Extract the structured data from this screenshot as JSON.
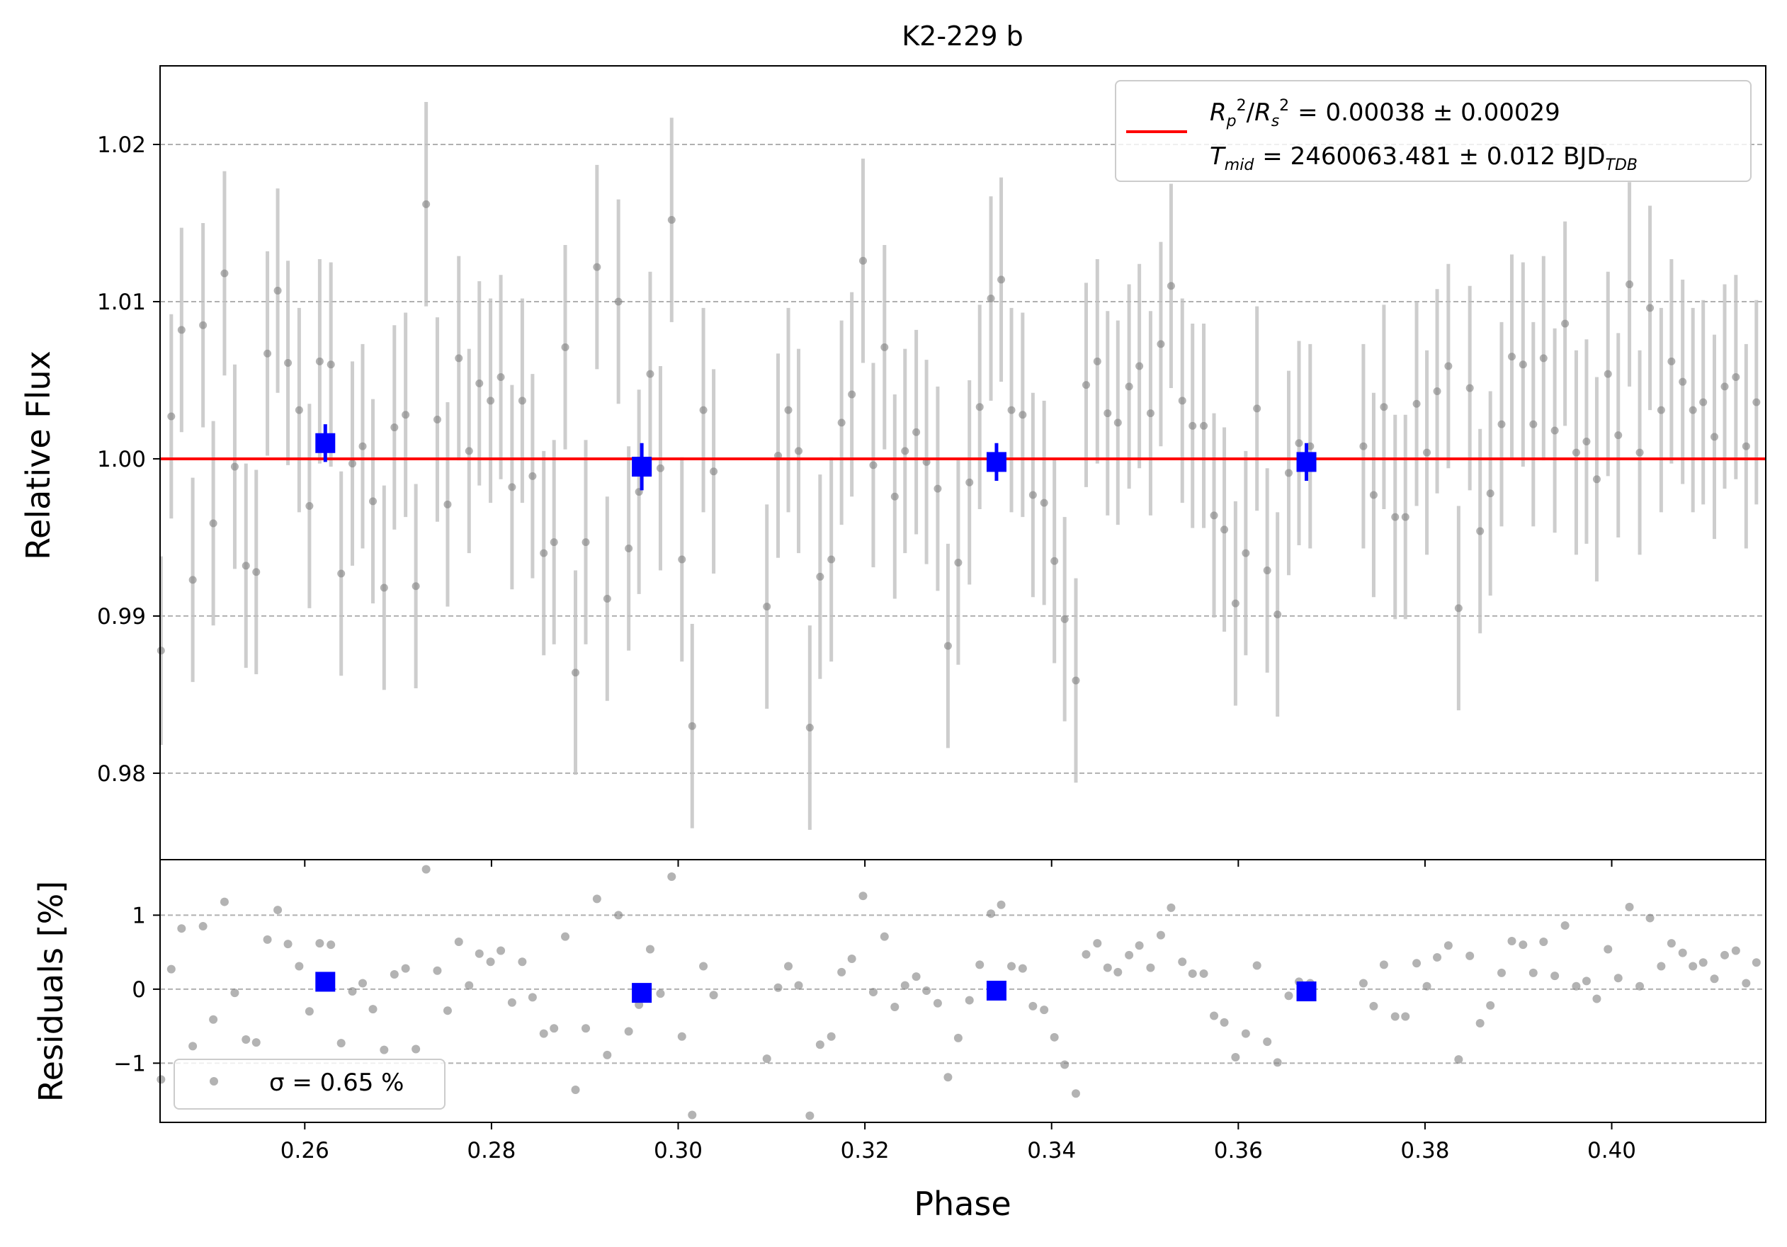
{
  "chart_data": [
    {
      "type": "scatter",
      "title": "K2-229 b",
      "xlabel": "",
      "ylabel": "Relative Flux",
      "xlim": [
        0.2445,
        0.4165
      ],
      "ylim": [
        0.9745,
        1.025
      ],
      "grid": "horizontal dashed",
      "yticks": [
        0.98,
        0.99,
        1.0,
        1.01,
        1.02
      ],
      "ytick_labels": [
        "0.98",
        "0.99",
        "1.00",
        "1.01",
        "1.02"
      ],
      "legend": {
        "placement": "top-right",
        "line1": {
          "lhs": "R_p^2/R_s^2",
          "value": "= 0.00038 ± 0.00029"
        },
        "line2": {
          "lhs": "T_mid",
          "value": "= 2460063.481 ± 0.012 BJD",
          "subscript": "TDB"
        }
      },
      "model": {
        "type": "line",
        "color": "#ff0000",
        "x": [
          0.2445,
          0.4165
        ],
        "y": [
          1.0,
          1.0
        ]
      },
      "binned": {
        "color": "#0000ff",
        "points": [
          {
            "x": 0.2622,
            "y": 1.001,
            "err": 0.0012
          },
          {
            "x": 0.2961,
            "y": 0.9995,
            "err": 0.0015
          },
          {
            "x": 0.3341,
            "y": 0.9998,
            "err": 0.0012
          },
          {
            "x": 0.3673,
            "y": 0.9998,
            "err": 0.0012
          }
        ]
      },
      "data": {
        "color": "#808080",
        "points": [
          [
            0.2446,
            0.9878,
            0.006
          ],
          [
            0.2457,
            1.0027,
            0.0065
          ],
          [
            0.2468,
            1.0082,
            0.0065
          ],
          [
            0.248,
            0.9923,
            0.0065
          ],
          [
            0.2491,
            1.0085,
            0.0065
          ],
          [
            0.2502,
            0.9959,
            0.0065
          ],
          [
            0.2514,
            1.0118,
            0.0065
          ],
          [
            0.2525,
            0.9995,
            0.0065
          ],
          [
            0.2537,
            0.9932,
            0.0065
          ],
          [
            0.2548,
            0.9928,
            0.0065
          ],
          [
            0.256,
            1.0067,
            0.0065
          ],
          [
            0.2571,
            1.0107,
            0.0065
          ],
          [
            0.2582,
            1.0061,
            0.0065
          ],
          [
            0.2594,
            1.0031,
            0.0065
          ],
          [
            0.2605,
            0.997,
            0.0065
          ],
          [
            0.2616,
            1.0062,
            0.0065
          ],
          [
            0.2628,
            1.006,
            0.0065
          ],
          [
            0.2639,
            0.9927,
            0.0065
          ],
          [
            0.2651,
            0.9997,
            0.0065
          ],
          [
            0.2662,
            1.0008,
            0.0065
          ],
          [
            0.2673,
            0.9973,
            0.0065
          ],
          [
            0.2685,
            0.9918,
            0.0065
          ],
          [
            0.2696,
            1.002,
            0.0065
          ],
          [
            0.2708,
            1.0028,
            0.0065
          ],
          [
            0.2719,
            0.9919,
            0.0065
          ],
          [
            0.273,
            1.0162,
            0.0065
          ],
          [
            0.2742,
            1.0025,
            0.0065
          ],
          [
            0.2753,
            0.9971,
            0.0065
          ],
          [
            0.2765,
            1.0064,
            0.0065
          ],
          [
            0.2776,
            1.0005,
            0.0065
          ],
          [
            0.2787,
            1.0048,
            0.0065
          ],
          [
            0.2799,
            1.0037,
            0.0065
          ],
          [
            0.281,
            1.0052,
            0.0065
          ],
          [
            0.2822,
            0.9982,
            0.0065
          ],
          [
            0.2833,
            1.0037,
            0.0065
          ],
          [
            0.2844,
            0.9989,
            0.0065
          ],
          [
            0.2856,
            0.994,
            0.0065
          ],
          [
            0.2867,
            0.9947,
            0.0065
          ],
          [
            0.2879,
            1.0071,
            0.0065
          ],
          [
            0.289,
            0.9864,
            0.0065
          ],
          [
            0.2901,
            0.9947,
            0.0065
          ],
          [
            0.2913,
            1.0122,
            0.0065
          ],
          [
            0.2924,
            0.9911,
            0.0065
          ],
          [
            0.2936,
            1.01,
            0.0065
          ],
          [
            0.2947,
            0.9943,
            0.0065
          ],
          [
            0.2958,
            0.9979,
            0.0065
          ],
          [
            0.297,
            1.0054,
            0.0065
          ],
          [
            0.2981,
            0.9994,
            0.0065
          ],
          [
            0.2993,
            1.0152,
            0.0065
          ],
          [
            0.3004,
            0.9936,
            0.0065
          ],
          [
            0.3015,
            0.983,
            0.0065
          ],
          [
            0.3027,
            1.0031,
            0.0065
          ],
          [
            0.3038,
            0.9992,
            0.0065
          ],
          [
            0.3095,
            0.9906,
            0.0065
          ],
          [
            0.3107,
            1.0002,
            0.0065
          ],
          [
            0.3118,
            1.0031,
            0.0065
          ],
          [
            0.3129,
            1.0005,
            0.0065
          ],
          [
            0.3141,
            0.9829,
            0.0065
          ],
          [
            0.3152,
            0.9925,
            0.0065
          ],
          [
            0.3164,
            0.9936,
            0.0065
          ],
          [
            0.3175,
            1.0023,
            0.0065
          ],
          [
            0.3186,
            1.0041,
            0.0065
          ],
          [
            0.3198,
            1.0126,
            0.0065
          ],
          [
            0.3209,
            0.9996,
            0.0065
          ],
          [
            0.3221,
            1.0071,
            0.0065
          ],
          [
            0.3232,
            0.9976,
            0.0065
          ],
          [
            0.3243,
            1.0005,
            0.0065
          ],
          [
            0.3255,
            1.0017,
            0.0065
          ],
          [
            0.3266,
            0.9998,
            0.0065
          ],
          [
            0.3278,
            0.9981,
            0.0065
          ],
          [
            0.3289,
            0.9881,
            0.0065
          ],
          [
            0.33,
            0.9934,
            0.0065
          ],
          [
            0.3312,
            0.9985,
            0.0065
          ],
          [
            0.3323,
            1.0033,
            0.0065
          ],
          [
            0.3335,
            1.0102,
            0.0065
          ],
          [
            0.3346,
            1.0114,
            0.0065
          ],
          [
            0.3357,
            1.0031,
            0.0065
          ],
          [
            0.3369,
            1.0028,
            0.0065
          ],
          [
            0.338,
            0.9977,
            0.0065
          ],
          [
            0.3392,
            0.9972,
            0.0065
          ],
          [
            0.3403,
            0.9935,
            0.0065
          ],
          [
            0.3414,
            0.9898,
            0.0065
          ],
          [
            0.3426,
            0.9859,
            0.0065
          ],
          [
            0.3437,
            1.0047,
            0.0065
          ],
          [
            0.3449,
            1.0062,
            0.0065
          ],
          [
            0.346,
            1.0029,
            0.0065
          ],
          [
            0.3471,
            1.0023,
            0.0065
          ],
          [
            0.3483,
            1.0046,
            0.0065
          ],
          [
            0.3494,
            1.0059,
            0.0065
          ],
          [
            0.3506,
            1.0029,
            0.0065
          ],
          [
            0.3517,
            1.0073,
            0.0065
          ],
          [
            0.3528,
            1.011,
            0.0065
          ],
          [
            0.354,
            1.0037,
            0.0065
          ],
          [
            0.3551,
            1.0021,
            0.0065
          ],
          [
            0.3563,
            1.0021,
            0.0065
          ],
          [
            0.3574,
            0.9964,
            0.0065
          ],
          [
            0.3585,
            0.9955,
            0.0065
          ],
          [
            0.3597,
            0.9908,
            0.0065
          ],
          [
            0.3608,
            0.994,
            0.0065
          ],
          [
            0.362,
            1.0032,
            0.0065
          ],
          [
            0.3631,
            0.9929,
            0.0065
          ],
          [
            0.3642,
            0.9901,
            0.0065
          ],
          [
            0.3654,
            0.9991,
            0.0065
          ],
          [
            0.3665,
            1.001,
            0.0065
          ],
          [
            0.3677,
            1.0008,
            0.0065
          ],
          [
            0.3734,
            1.0008,
            0.0065
          ],
          [
            0.3745,
            0.9977,
            0.0065
          ],
          [
            0.3756,
            1.0033,
            0.0065
          ],
          [
            0.3768,
            0.9963,
            0.0065
          ],
          [
            0.3779,
            0.9963,
            0.0065
          ],
          [
            0.3791,
            1.0035,
            0.0065
          ],
          [
            0.3802,
            1.0004,
            0.0065
          ],
          [
            0.3813,
            1.0043,
            0.0065
          ],
          [
            0.3825,
            1.0059,
            0.0065
          ],
          [
            0.3836,
            0.9905,
            0.0065
          ],
          [
            0.3848,
            1.0045,
            0.0065
          ],
          [
            0.3859,
            0.9954,
            0.0065
          ],
          [
            0.387,
            0.9978,
            0.0065
          ],
          [
            0.3882,
            1.0022,
            0.0065
          ],
          [
            0.3893,
            1.0065,
            0.0065
          ],
          [
            0.3905,
            1.006,
            0.0065
          ],
          [
            0.3916,
            1.0022,
            0.0065
          ],
          [
            0.3927,
            1.0064,
            0.0065
          ],
          [
            0.3939,
            1.0018,
            0.0065
          ],
          [
            0.395,
            1.0086,
            0.0065
          ],
          [
            0.3962,
            1.0004,
            0.0065
          ],
          [
            0.3973,
            1.0011,
            0.0065
          ],
          [
            0.3984,
            0.9987,
            0.0065
          ],
          [
            0.3996,
            1.0054,
            0.0065
          ],
          [
            0.4007,
            1.0015,
            0.0065
          ],
          [
            0.4019,
            1.0111,
            0.0065
          ],
          [
            0.403,
            1.0004,
            0.0065
          ],
          [
            0.4041,
            1.0096,
            0.0065
          ],
          [
            0.4053,
            1.0031,
            0.0065
          ],
          [
            0.4064,
            1.0062,
            0.0065
          ],
          [
            0.4076,
            1.0049,
            0.0065
          ],
          [
            0.4087,
            1.0031,
            0.0065
          ],
          [
            0.4098,
            1.0036,
            0.0065
          ],
          [
            0.411,
            1.0014,
            0.0065
          ],
          [
            0.4121,
            1.0046,
            0.0065
          ],
          [
            0.4133,
            1.0052,
            0.0065
          ],
          [
            0.4144,
            1.0008,
            0.0065
          ],
          [
            0.4155,
            1.0036,
            0.0065
          ]
        ]
      }
    },
    {
      "type": "scatter",
      "xlabel": "Phase",
      "ylabel": "Residuals [%]",
      "xlim": [
        0.2445,
        0.4165
      ],
      "ylim": [
        -1.8,
        1.75
      ],
      "grid": "horizontal dashed",
      "xticks": [
        0.26,
        0.28,
        0.3,
        0.32,
        0.34,
        0.36,
        0.38,
        0.4
      ],
      "xtick_labels": [
        "0.26",
        "0.28",
        "0.30",
        "0.32",
        "0.34",
        "0.36",
        "0.38",
        "0.40"
      ],
      "yticks": [
        -1,
        0,
        1
      ],
      "ytick_labels": [
        "−1",
        "0",
        "1"
      ],
      "legend": {
        "placement": "bottom-left",
        "label": "σ = 0.65 %"
      },
      "binned": {
        "color": "#0000ff",
        "points": [
          {
            "x": 0.2622,
            "y": 0.1
          },
          {
            "x": 0.2961,
            "y": -0.05
          },
          {
            "x": 0.3341,
            "y": -0.02
          },
          {
            "x": 0.3673,
            "y": -0.03
          }
        ]
      }
    }
  ]
}
